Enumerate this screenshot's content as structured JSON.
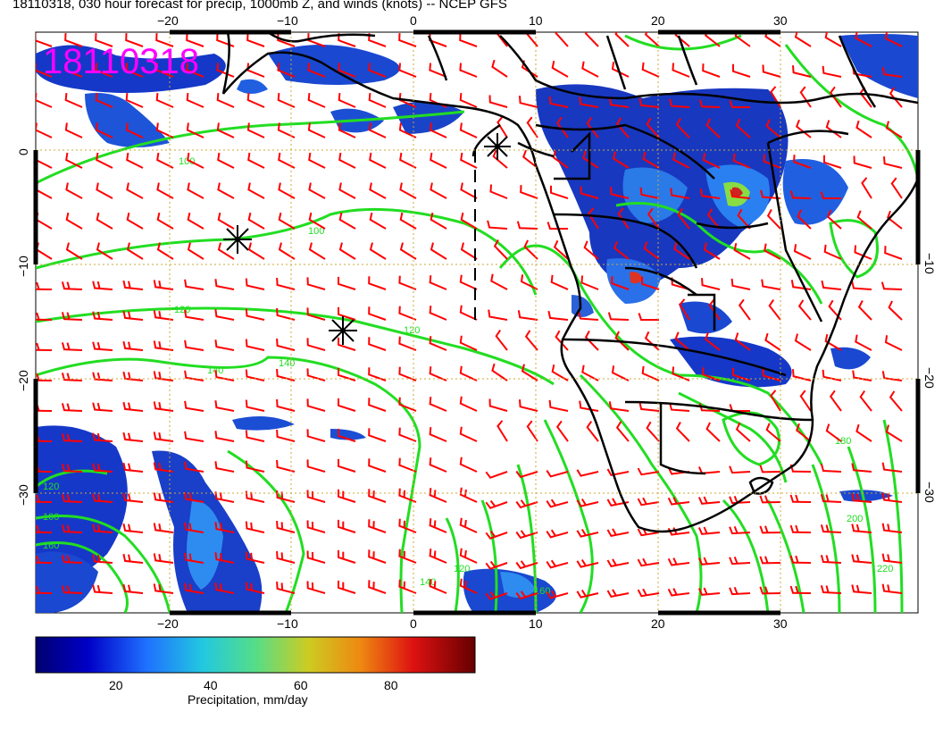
{
  "title": "18110318, 030 hour forecast for precip, 1000mb Z, and winds (knots) -- NCEP GFS",
  "stamp": "18110318",
  "colors": {
    "stamp": "#ff00ff",
    "contour": "#22dd22",
    "barb": "#ff0000",
    "coast": "#000000",
    "grid": "#ccaa33"
  },
  "axes": {
    "lon_ticks": [
      "−20",
      "−10",
      "0",
      "10",
      "20",
      "30"
    ],
    "lat_ticks_left": [
      "0",
      "−10",
      "−20",
      "−30"
    ],
    "lat_ticks_right": [
      "−10",
      "−20",
      "−30"
    ],
    "lon_range": [
      -30,
      40
    ],
    "lat_range": [
      -40,
      10
    ]
  },
  "contour_labels": [
    "100",
    "100",
    "120",
    "120",
    "140",
    "140",
    "120",
    "100",
    "160",
    "140",
    "120",
    "160",
    "180",
    "200",
    "220"
  ],
  "colorbar": {
    "label": "Precipitation, mm/day",
    "ticks": [
      "20",
      "40",
      "60",
      "80"
    ],
    "range": [
      0,
      100
    ]
  },
  "markers": [
    "cyclone-marker",
    "anticyclone-marker",
    "anticyclone-marker"
  ]
}
